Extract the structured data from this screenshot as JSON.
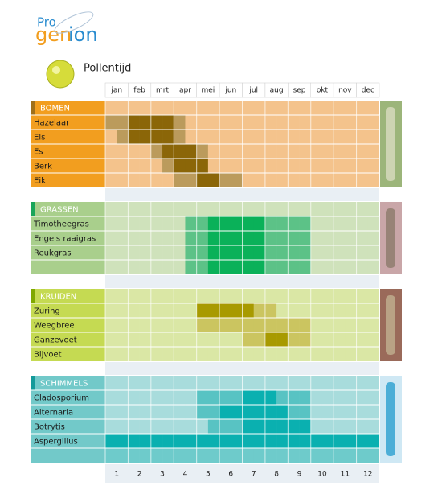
{
  "logo": {
    "pro": "Pro",
    "gen": "gen",
    "ion": "ion"
  },
  "title": "Pollentijd",
  "months": [
    "jan",
    "feb",
    "mrt",
    "apr",
    "mei",
    "jun",
    "jul",
    "aug",
    "sep",
    "okt",
    "nov",
    "dec"
  ],
  "month_numbers": [
    1,
    2,
    3,
    4,
    5,
    6,
    7,
    8,
    9,
    10,
    11,
    12
  ],
  "groups": [
    {
      "name": "BOMEN",
      "label_color": "#f29e1f",
      "accent": "#a0701a",
      "level_colors": [
        "#f4c38c",
        "#bb9b5c",
        "#a17f33",
        "#8b6608"
      ],
      "rows": [
        {
          "name": "Hazelaar",
          "levels": [
            1,
            1,
            3,
            3,
            3,
            3,
            1,
            0,
            0,
            0,
            0,
            0,
            0,
            0,
            0,
            0,
            0,
            0,
            0,
            0,
            0,
            0,
            0,
            0
          ]
        },
        {
          "name": "Els",
          "levels": [
            0,
            1,
            3,
            3,
            3,
            3,
            1,
            0,
            0,
            0,
            0,
            0,
            0,
            0,
            0,
            0,
            0,
            0,
            0,
            0,
            0,
            0,
            0,
            0
          ]
        },
        {
          "name": "Es",
          "levels": [
            0,
            0,
            0,
            0,
            1,
            3,
            3,
            3,
            1,
            0,
            0,
            0,
            0,
            0,
            0,
            0,
            0,
            0,
            0,
            0,
            0,
            0,
            0,
            0
          ]
        },
        {
          "name": "Berk",
          "levels": [
            0,
            0,
            0,
            0,
            0,
            1,
            3,
            3,
            3,
            0,
            0,
            0,
            0,
            0,
            0,
            0,
            0,
            0,
            0,
            0,
            0,
            0,
            0,
            0
          ]
        },
        {
          "name": "Eik",
          "levels": [
            0,
            0,
            0,
            0,
            0,
            0,
            1,
            1,
            3,
            3,
            1,
            1,
            0,
            0,
            0,
            0,
            0,
            0,
            0,
            0,
            0,
            0,
            0,
            0
          ]
        }
      ]
    },
    {
      "name": "GRASSEN",
      "label_color": "#a9cf8c",
      "accent": "#1aa55a",
      "level_colors": [
        "#cfe2bb",
        "#8fd19e",
        "#5cc287",
        "#0ab159"
      ],
      "rows": [
        {
          "name": "Timotheegras",
          "levels": [
            0,
            0,
            0,
            0,
            0,
            0,
            0,
            2,
            2,
            3,
            3,
            3,
            3,
            3,
            2,
            2,
            2,
            2,
            0,
            0,
            0,
            0,
            0,
            0
          ]
        },
        {
          "name": "Engels raaigras",
          "levels": [
            0,
            0,
            0,
            0,
            0,
            0,
            0,
            2,
            2,
            3,
            3,
            3,
            3,
            3,
            2,
            2,
            2,
            2,
            0,
            0,
            0,
            0,
            0,
            0
          ]
        },
        {
          "name": "Reukgras",
          "levels": [
            0,
            0,
            0,
            0,
            0,
            0,
            0,
            2,
            2,
            3,
            3,
            3,
            3,
            3,
            2,
            2,
            2,
            2,
            0,
            0,
            0,
            0,
            0,
            0
          ]
        },
        {
          "name": null,
          "levels": [
            0,
            0,
            0,
            0,
            0,
            0,
            0,
            2,
            2,
            3,
            3,
            3,
            3,
            3,
            2,
            2,
            2,
            2,
            0,
            0,
            0,
            0,
            0,
            0
          ]
        }
      ]
    },
    {
      "name": "KRUIDEN",
      "label_color": "#c5da52",
      "accent": "#7fa800",
      "level_colors": [
        "#dae7a5",
        "#cbc560",
        "#b9ac2a",
        "#a89a00"
      ],
      "rows": [
        {
          "name": "Zuring",
          "levels": [
            0,
            0,
            0,
            0,
            0,
            0,
            0,
            0,
            3,
            3,
            3,
            3,
            3,
            1,
            1,
            0,
            0,
            0,
            0,
            0,
            0,
            0,
            0,
            0
          ]
        },
        {
          "name": "Weegbree",
          "levels": [
            0,
            0,
            0,
            0,
            0,
            0,
            0,
            0,
            1,
            1,
            1,
            1,
            1,
            1,
            1,
            1,
            1,
            1,
            0,
            0,
            0,
            0,
            0,
            0
          ]
        },
        {
          "name": "Ganzevoet",
          "levels": [
            0,
            0,
            0,
            0,
            0,
            0,
            0,
            0,
            0,
            0,
            0,
            0,
            1,
            1,
            3,
            3,
            1,
            1,
            0,
            0,
            0,
            0,
            0,
            0
          ]
        },
        {
          "name": "Bijvoet",
          "levels": [
            0,
            0,
            0,
            0,
            0,
            0,
            0,
            0,
            0,
            0,
            0,
            0,
            0,
            0,
            0,
            0,
            0,
            0,
            0,
            0,
            0,
            0,
            0,
            0
          ]
        }
      ]
    },
    {
      "name": "SCHIMMELS",
      "label_color": "#72c9c9",
      "accent": "#159a9a",
      "level_colors": [
        "#a8dcdc",
        "#6ecbcb",
        "#58c3c3",
        "#0ab0b0"
      ],
      "rows": [
        {
          "name": "Cladosporium",
          "levels": [
            0,
            0,
            0,
            0,
            0,
            0,
            0,
            0,
            2,
            2,
            2,
            2,
            3,
            3,
            3,
            2,
            2,
            2,
            0,
            0,
            0,
            0,
            0,
            0
          ]
        },
        {
          "name": "Alternaria",
          "levels": [
            0,
            0,
            0,
            0,
            0,
            0,
            0,
            0,
            2,
            2,
            3,
            3,
            3,
            3,
            3,
            3,
            2,
            2,
            0,
            0,
            0,
            0,
            0,
            0
          ]
        },
        {
          "name": "Botrytis",
          "levels": [
            0,
            0,
            0,
            0,
            0,
            0,
            0,
            0,
            0,
            2,
            2,
            2,
            3,
            3,
            3,
            3,
            3,
            3,
            0,
            0,
            0,
            0,
            0,
            0
          ]
        },
        {
          "name": "Aspergillus",
          "levels": [
            3,
            3,
            3,
            3,
            3,
            3,
            3,
            3,
            3,
            3,
            3,
            3,
            3,
            3,
            3,
            3,
            3,
            3,
            3,
            3,
            3,
            3,
            3,
            3
          ]
        },
        {
          "name": null,
          "levels": [
            1,
            1,
            1,
            1,
            1,
            1,
            1,
            1,
            1,
            1,
            1,
            1,
            1,
            1,
            1,
            1,
            1,
            1,
            1,
            1,
            1,
            1,
            1,
            1
          ]
        }
      ]
    }
  ]
}
